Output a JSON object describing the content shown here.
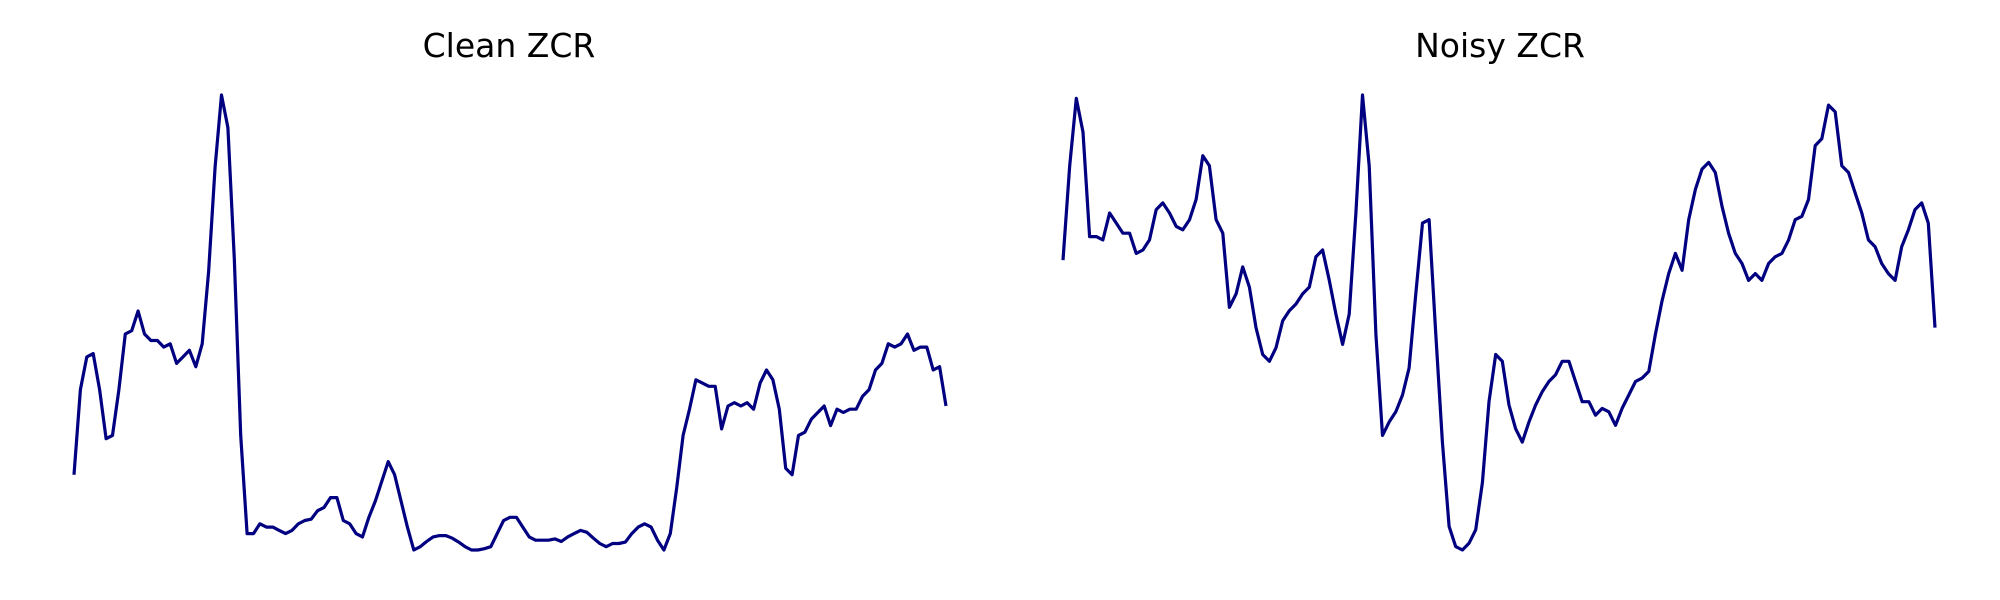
{
  "chart_data": [
    {
      "type": "line",
      "title": "Clean ZCR",
      "xlabel": "",
      "ylabel": "",
      "axes": "off",
      "grid": false,
      "legend": "none",
      "color": "#000080",
      "series": [
        {
          "values": [
            0.14,
            0.27,
            0.32,
            0.325,
            0.27,
            0.195,
            0.2,
            0.27,
            0.355,
            0.36,
            0.39,
            0.355,
            0.345,
            0.345,
            0.335,
            0.34,
            0.31,
            0.32,
            0.33,
            0.305,
            0.34,
            0.45,
            0.61,
            0.72,
            0.67,
            0.47,
            0.2,
            0.05,
            0.05,
            0.065,
            0.06,
            0.06,
            0.055,
            0.05,
            0.055,
            0.065,
            0.07,
            0.072,
            0.085,
            0.09,
            0.105,
            0.105,
            0.07,
            0.065,
            0.05,
            0.045,
            0.075,
            0.1,
            0.13,
            0.16,
            0.14,
            0.1,
            0.06,
            0.025,
            0.03,
            0.038,
            0.045,
            0.047,
            0.047,
            0.043,
            0.037,
            0.03,
            0.025,
            0.025,
            0.027,
            0.03,
            0.05,
            0.07,
            0.075,
            0.075,
            0.06,
            0.045,
            0.04,
            0.04,
            0.04,
            0.042,
            0.038,
            0.045,
            0.05,
            0.055,
            0.052,
            0.043,
            0.035,
            0.03,
            0.035,
            0.035,
            0.037,
            0.05,
            0.06,
            0.065,
            0.06,
            0.04,
            0.025,
            0.05,
            0.12,
            0.2,
            0.24,
            0.285,
            0.28,
            0.275,
            0.275,
            0.21,
            0.245,
            0.25,
            0.245,
            0.25,
            0.24,
            0.28,
            0.3,
            0.285,
            0.24,
            0.15,
            0.14,
            0.2,
            0.205,
            0.225,
            0.235,
            0.245,
            0.215,
            0.24,
            0.235,
            0.24,
            0.24,
            0.26,
            0.27,
            0.3,
            0.31,
            0.34,
            0.335,
            0.34,
            0.355,
            0.33,
            0.335,
            0.335,
            0.3,
            0.305,
            0.245
          ]
        }
      ]
    },
    {
      "type": "line",
      "title": "Noisy ZCR",
      "xlabel": "",
      "ylabel": "",
      "axes": "off",
      "grid": false,
      "legend": "none",
      "color": "#000080",
      "series": [
        {
          "values": [
            0.46,
            0.6,
            0.7,
            0.65,
            0.495,
            0.495,
            0.49,
            0.53,
            0.515,
            0.5,
            0.5,
            0.47,
            0.475,
            0.49,
            0.535,
            0.545,
            0.53,
            0.51,
            0.505,
            0.52,
            0.55,
            0.615,
            0.6,
            0.52,
            0.5,
            0.39,
            0.41,
            0.45,
            0.42,
            0.36,
            0.32,
            0.31,
            0.33,
            0.37,
            0.385,
            0.395,
            0.41,
            0.42,
            0.465,
            0.475,
            0.43,
            0.38,
            0.335,
            0.38,
            0.53,
            0.705,
            0.6,
            0.35,
            0.2,
            0.22,
            0.235,
            0.26,
            0.3,
            0.41,
            0.515,
            0.52,
            0.35,
            0.19,
            0.065,
            0.035,
            0.03,
            0.04,
            0.06,
            0.13,
            0.25,
            0.32,
            0.31,
            0.245,
            0.21,
            0.19,
            0.22,
            0.245,
            0.265,
            0.28,
            0.29,
            0.31,
            0.31,
            0.28,
            0.25,
            0.25,
            0.23,
            0.24,
            0.235,
            0.215,
            0.24,
            0.26,
            0.28,
            0.285,
            0.295,
            0.35,
            0.4,
            0.44,
            0.47,
            0.445,
            0.52,
            0.565,
            0.595,
            0.605,
            0.59,
            0.54,
            0.5,
            0.47,
            0.455,
            0.43,
            0.44,
            0.43,
            0.455,
            0.465,
            0.47,
            0.49,
            0.52,
            0.525,
            0.55,
            0.63,
            0.64,
            0.69,
            0.68,
            0.6,
            0.59,
            0.56,
            0.53,
            0.49,
            0.48,
            0.455,
            0.44,
            0.43,
            0.48,
            0.505,
            0.535,
            0.545,
            0.515,
            0.36
          ]
        }
      ]
    }
  ]
}
